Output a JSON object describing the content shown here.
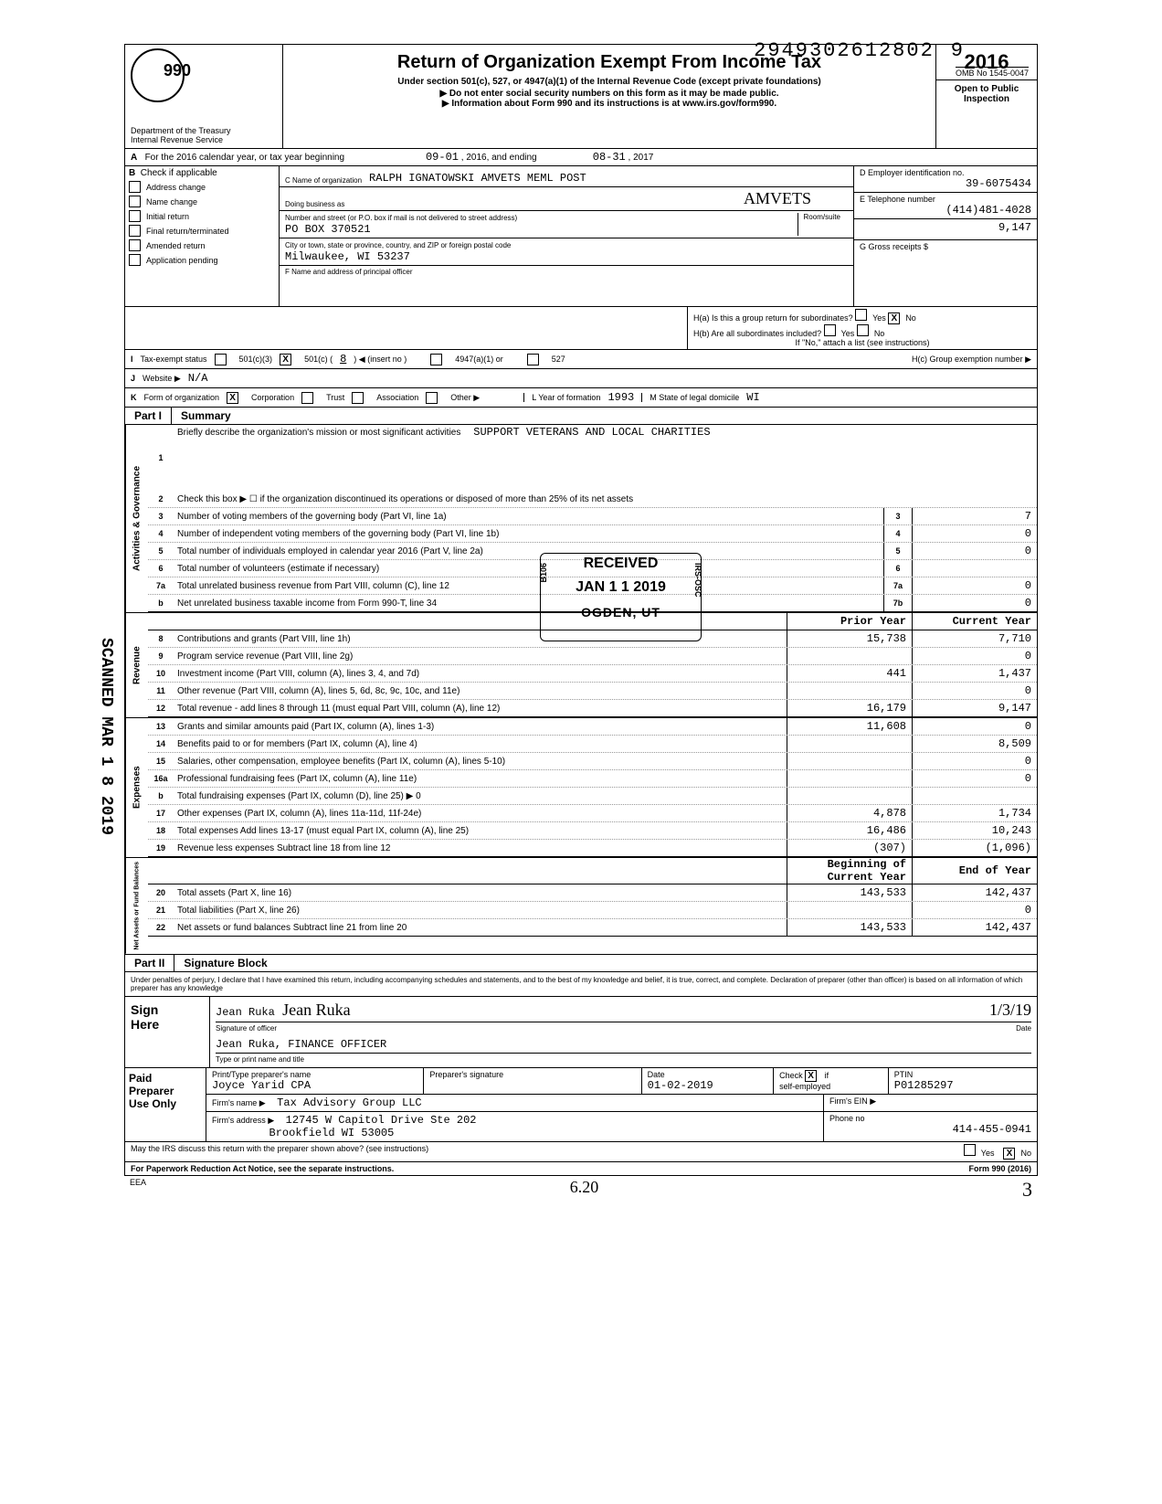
{
  "header": {
    "top_number": "29493026128029",
    "top_number_main": "2949302612802",
    "top_number_last": "9",
    "omb": "OMB No 1545-0047",
    "form_no": "990",
    "title": "Return of Organization Exempt From Income Tax",
    "subtitle": "Under section 501(c), 527, or 4947(a)(1) of the Internal Revenue Code (except private foundations)",
    "line1": "▶ Do not enter social security numbers on this form as it may be made public.",
    "line2": "▶ Information about Form 990 and its instructions is at www.irs.gov/form990.",
    "dept": "Department of the Treasury",
    "irs": "Internal Revenue Service",
    "year": "2016",
    "open": "Open to Public",
    "inspection": "Inspection"
  },
  "row_a": {
    "label": "A",
    "text": "For the 2016 calendar year, or tax year beginning",
    "begin": "09-01",
    "mid": ", 2016, and ending",
    "end": "08-31",
    "end_year": ", 2017"
  },
  "block_b": {
    "b_label": "B",
    "b_text": "Check if applicable",
    "checks": [
      "Address change",
      "Name change",
      "Initial return",
      "Final return/terminated",
      "Amended return",
      "Application pending"
    ],
    "c_name_lbl": "C  Name of organization",
    "c_name": "RALPH IGNATOWSKI AMVETS MEML POST",
    "dba_lbl": "Doing business as",
    "dba_hand": "AMVETS",
    "street_lbl": "Number and street (or P.O. box if mail is not delivered to street address)",
    "room_lbl": "Room/suite",
    "street": "PO BOX 370521",
    "city_lbl": "City or town, state or province, country, and ZIP or foreign postal code",
    "city": "Milwaukee, WI 53237",
    "f_lbl": "F  Name and address of principal officer",
    "d_lbl": "D  Employer identification no.",
    "d_val": "39-6075434",
    "e_lbl": "E  Telephone number",
    "e_val": "(414)481-4028",
    "g_lbl": "G  Gross receipts $",
    "g_val": "9,147"
  },
  "row_f_right": {
    "ha": "H(a) Is this a group return for subordinates?",
    "hb": "H(b) Are all subordinates included?",
    "hnote": "If \"No,\" attach a list (see instructions)",
    "hc": "H(c)  Group exemption number  ▶",
    "yes": "Yes",
    "no": "No",
    "ha_no_checked": "X"
  },
  "row_i": {
    "lbl": "I",
    "text": "Tax-exempt status",
    "opt1": "501(c)(3)",
    "opt2": "501(c) (",
    "opt2_val": "8",
    "opt2_end": ")  ◀ (insert no )",
    "opt3": "4947(a)(1) or",
    "opt4": "527",
    "opt2_checked": "X"
  },
  "row_j": {
    "lbl": "J",
    "text": "Website ▶",
    "val": "N/A"
  },
  "row_k": {
    "lbl": "K",
    "text": "Form of organization",
    "corp": "Corporation",
    "corp_checked": "X",
    "trust": "Trust",
    "assoc": "Association",
    "other": "Other ▶",
    "l_lbl": "L  Year of formation",
    "l_val": "1993",
    "m_lbl": "M  State of legal domicile",
    "m_val": "WI"
  },
  "part1": {
    "label": "Part I",
    "title": "Summary"
  },
  "summary": {
    "side_labels": [
      "Activities & Governance",
      "Revenue",
      "Expenses",
      "Net Assets or Fund Balances"
    ],
    "mission_lbl": "Briefly describe the organization's mission or most significant activities",
    "mission": "SUPPORT VETERANS AND LOCAL CHARITIES",
    "line2": "Check this box ▶ ☐ if the organization discontinued its operations or disposed of more than 25% of its net assets",
    "lines_ag": [
      {
        "n": "3",
        "d": "Number of voting members of the governing body (Part VI, line 1a)",
        "b": "3",
        "v": "7"
      },
      {
        "n": "4",
        "d": "Number of independent voting members of the governing body (Part VI, line 1b)",
        "b": "4",
        "v": "0"
      },
      {
        "n": "5",
        "d": "Total number of individuals employed in calendar year 2016 (Part V, line 2a)",
        "b": "5",
        "v": "0"
      },
      {
        "n": "6",
        "d": "Total number of volunteers (estimate if necessary)",
        "b": "6",
        "v": ""
      },
      {
        "n": "7a",
        "d": "Total unrelated business revenue from Part VIII, column (C), line 12",
        "b": "7a",
        "v": "0"
      },
      {
        "n": "b",
        "d": "Net unrelated business taxable income from Form 990-T, line 34",
        "b": "7b",
        "v": "0"
      }
    ],
    "col1_hdr": "Prior Year",
    "col2_hdr": "Current Year",
    "lines_rev": [
      {
        "n": "8",
        "d": "Contributions and grants (Part VIII, line 1h)",
        "c1": "15,738",
        "c2": "7,710"
      },
      {
        "n": "9",
        "d": "Program service revenue (Part VIII, line 2g)",
        "c1": "",
        "c2": "0"
      },
      {
        "n": "10",
        "d": "Investment income (Part VIII, column (A), lines 3, 4, and 7d)",
        "c1": "441",
        "c2": "1,437"
      },
      {
        "n": "11",
        "d": "Other revenue (Part VIII, column (A), lines 5, 6d, 8c, 9c, 10c, and 11e)",
        "c1": "",
        "c2": "0"
      },
      {
        "n": "12",
        "d": "Total revenue - add lines 8 through 11 (must equal Part VIII, column (A), line 12)",
        "c1": "16,179",
        "c2": "9,147"
      }
    ],
    "lines_exp": [
      {
        "n": "13",
        "d": "Grants and similar amounts paid (Part IX, column (A), lines 1-3)",
        "c1": "11,608",
        "c2": "0"
      },
      {
        "n": "14",
        "d": "Benefits paid to or for members (Part IX, column (A), line 4)",
        "c1": "",
        "c2": "8,509"
      },
      {
        "n": "15",
        "d": "Salaries, other compensation, employee benefits (Part IX, column (A), lines 5-10)",
        "c1": "",
        "c2": "0"
      },
      {
        "n": "16a",
        "d": "Professional fundraising fees (Part IX, column (A), line 11e)",
        "c1": "",
        "c2": "0"
      },
      {
        "n": "b",
        "d": "Total fundraising expenses (Part IX, column (D), line 25)  ▶                                    0",
        "c1": "",
        "c2": ""
      },
      {
        "n": "17",
        "d": "Other expenses (Part IX, column (A), lines 11a-11d, 11f-24e)",
        "c1": "4,878",
        "c2": "1,734"
      },
      {
        "n": "18",
        "d": "Total expenses  Add lines 13-17 (must equal Part IX, column (A), line 25)",
        "c1": "16,486",
        "c2": "10,243"
      },
      {
        "n": "19",
        "d": "Revenue less expenses  Subtract line 18 from line 12",
        "c1": "(307)",
        "c2": "(1,096)"
      }
    ],
    "col1_hdr2": "Beginning of Current Year",
    "col2_hdr2": "End of Year",
    "lines_net": [
      {
        "n": "20",
        "d": "Total assets (Part X, line 16)",
        "c1": "143,533",
        "c2": "142,437"
      },
      {
        "n": "21",
        "d": "Total liabilities (Part X, line 26)",
        "c1": "",
        "c2": "0"
      },
      {
        "n": "22",
        "d": "Net assets or fund balances  Subtract line 21 from line 20",
        "c1": "143,533",
        "c2": "142,437"
      }
    ]
  },
  "part2": {
    "label": "Part II",
    "title": "Signature Block",
    "penalty": "Under penalties of perjury, I declare that I have examined this return, including accompanying schedules and statements, and to the best of my knowledge and belief, it is true, correct, and complete. Declaration of preparer (other than officer) is based on all information of which preparer has any knowledge"
  },
  "sign": {
    "here": "Sign Here",
    "name_typed": "Jean Ruka",
    "sig_lbl": "Signature of officer",
    "date_lbl": "Date",
    "date_val": "1/3/19",
    "title": "Jean Ruka, FINANCE OFFICER",
    "title_lbl": "Type or print name and title"
  },
  "preparer": {
    "lbl": "Paid Preparer Use Only",
    "name_lbl": "Print/Type preparer's name",
    "name": "Joyce Yarid CPA",
    "sig_lbl": "Preparer's signature",
    "date_lbl": "Date",
    "date": "01-02-2019",
    "check_lbl": "Check",
    "check_val": "X",
    "if_lbl": "if",
    "self_emp": "self-employed",
    "ptin_lbl": "PTIN",
    "ptin": "P01285297",
    "firm_name_lbl": "Firm's name  ▶",
    "firm_name": "Tax Advisory Group LLC",
    "firm_ein_lbl": "Firm's EIN ▶",
    "firm_addr_lbl": "Firm's address ▶",
    "firm_addr": "12745 W Capitol Drive  Ste 202",
    "firm_addr2": "Brookfield WI 53005",
    "phone_lbl": "Phone no",
    "phone": "414-455-0941"
  },
  "footer": {
    "discuss": "May the IRS discuss this return with the preparer shown above? (see instructions)",
    "paperwork": "For Paperwork Reduction Act Notice, see the separate instructions.",
    "yes": "Yes",
    "no": "No",
    "no_checked": "X",
    "form": "Form 990 (2016)",
    "eea": "EEA",
    "hand1": "6.20",
    "hand2": "3"
  },
  "stamps": {
    "received": "RECEIVED",
    "recv_date": "JAN 1 1 2019",
    "recv_loc": "OGDEN, UT",
    "recv_left": "B106",
    "recv_right": "IRS-OSC",
    "scanned": "SCANNED MAR 1 8 2019"
  }
}
